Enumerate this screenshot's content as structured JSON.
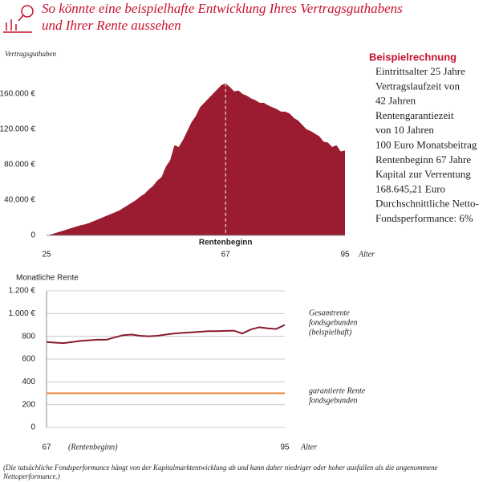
{
  "title_lines": [
    "So könnte eine beispielhafte Entwicklung Ihres Vertragsguthabens",
    "und Ihrer Rente aussehen"
  ],
  "info": {
    "heading": "Beispielrechnung",
    "lines": [
      "Eintrittsalter 25 Jahre",
      "Vertragslaufzeit von",
      "42 Jahren",
      "Rentengarantiezeit",
      "von 10 Jahren",
      "100 Euro Monatsbeitrag",
      "Rentenbeginn 67 Jahre",
      "Kapital zur Verrentung",
      "168.645,21 Euro",
      "Durchschnittliche Netto-",
      "Fondsperformance: 6%"
    ]
  },
  "footnote_lines": [
    "(Die tatsächliche Fondsperformance hängt von der Kapitalmarktentwicklung ab und kann daher niedriger oder hoher ausfallen als die angenommene",
    "Nettoperformance.)"
  ],
  "chart_data": [
    {
      "type": "area",
      "y_label": "Vertragsguthaben",
      "x_label": "Alter",
      "annotation": "Rentenbeginn",
      "color": "#9b1b30",
      "x": [
        25,
        26,
        27,
        28,
        29,
        30,
        31,
        32,
        33,
        34,
        35,
        36,
        37,
        38,
        39,
        40,
        41,
        42,
        43,
        44,
        45,
        46,
        47,
        48,
        49,
        50,
        51,
        52,
        53,
        54,
        55,
        56,
        57,
        58,
        59,
        60,
        61,
        62,
        63,
        64,
        65,
        66,
        67,
        68,
        69,
        70,
        71,
        72,
        73,
        74,
        75,
        76,
        77,
        78,
        79,
        80,
        81,
        82,
        83,
        84,
        85,
        86,
        87,
        88,
        89,
        90,
        91,
        92,
        93,
        94,
        95
      ],
      "values": [
        0,
        1000,
        2500,
        4000,
        5500,
        7000,
        8500,
        10000,
        11500,
        12500,
        14000,
        16000,
        18000,
        20000,
        22000,
        24000,
        26000,
        28000,
        31000,
        34000,
        37000,
        40000,
        44000,
        47000,
        52000,
        56000,
        62000,
        66000,
        78000,
        85000,
        102000,
        100000,
        108000,
        118000,
        128000,
        135000,
        145000,
        150000,
        155000,
        160000,
        165000,
        170000,
        172000,
        168000,
        163000,
        164000,
        160000,
        158000,
        155000,
        153000,
        150000,
        150000,
        147000,
        145000,
        143000,
        140000,
        140000,
        138000,
        133000,
        130000,
        125000,
        120000,
        118000,
        115000,
        112000,
        106000,
        105000,
        100000,
        102000,
        95000,
        96000
      ],
      "xlim": [
        25,
        95
      ],
      "xticks": [
        25,
        67,
        95
      ],
      "ylim": [
        0,
        180000
      ],
      "yticks": [
        0,
        {
          "value": 40000,
          "label": "40.000 €"
        },
        {
          "value": 80000,
          "label": "80.000 €"
        },
        {
          "value": 120000,
          "label": "120.000 €"
        },
        {
          "value": 160000,
          "label": "160.000 €"
        }
      ]
    },
    {
      "type": "line",
      "y_label": "Monatliche Rente",
      "x_label": "Alter",
      "annotation": "(Rentenbeginn)",
      "grid": true,
      "x": [
        67,
        68,
        69,
        70,
        71,
        72,
        73,
        74,
        75,
        76,
        77,
        78,
        79,
        80,
        81,
        82,
        83,
        84,
        85,
        86,
        87,
        88,
        89,
        90,
        91,
        92,
        93,
        94,
        95
      ],
      "series": [
        {
          "name_lines": [
            "Gesamtrente",
            "fondsgebunden",
            "(beispielhaft)"
          ],
          "color": "#8b1a2e",
          "values": [
            750,
            745,
            740,
            750,
            760,
            765,
            770,
            770,
            790,
            810,
            815,
            805,
            800,
            805,
            815,
            825,
            830,
            835,
            840,
            845,
            845,
            848,
            850,
            825,
            860,
            880,
            870,
            865,
            900
          ]
        },
        {
          "name_lines": [
            "garantierte Rente",
            "fondsgebunden"
          ],
          "color": "#e8823a",
          "values": [
            300,
            300,
            300,
            300,
            300,
            300,
            300,
            300,
            300,
            300,
            300,
            300,
            300,
            300,
            300,
            300,
            300,
            300,
            300,
            300,
            300,
            300,
            300,
            300,
            300,
            300,
            300,
            300,
            300
          ]
        }
      ],
      "xlim": [
        67,
        95
      ],
      "xticks": [
        67,
        95
      ],
      "ylim": [
        0,
        1200
      ],
      "yticks": [
        0,
        200,
        400,
        600,
        800,
        {
          "value": 1000,
          "label": "1.000 €"
        },
        {
          "value": 1200,
          "label": "1.200 €"
        }
      ]
    }
  ]
}
